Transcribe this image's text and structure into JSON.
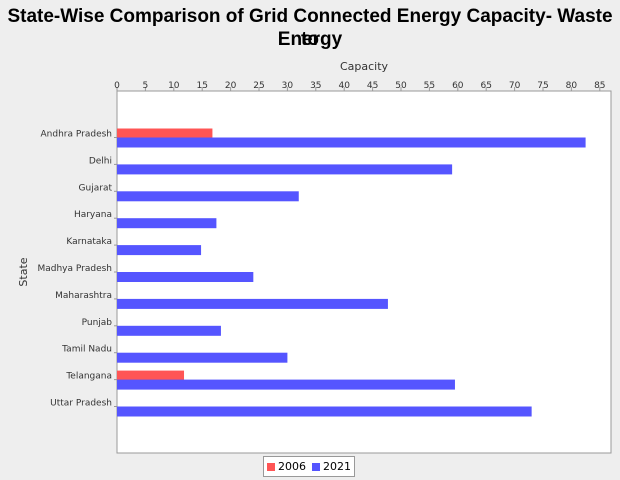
{
  "chart_data": {
    "type": "bar",
    "orientation": "horizontal",
    "title_line1": "State-Wise Comparison of Grid Connected Energy Capacity- Waste to",
    "title_line2": "Energy",
    "xlabel": "Capacity",
    "ylabel": "State",
    "xlim": [
      0,
      87
    ],
    "xticks": [
      0,
      5,
      10,
      15,
      20,
      25,
      30,
      35,
      40,
      45,
      50,
      55,
      60,
      65,
      70,
      75,
      80,
      85
    ],
    "grid": false,
    "legend_position": "bottom",
    "categories": [
      "Andhra Pradesh",
      "Delhi",
      "Gujarat",
      "Haryana",
      "Karnataka",
      "Madhya Pradesh",
      "Maharashtra",
      "Punjab",
      "Tamil Nadu",
      "Telangana",
      "Uttar Pradesh"
    ],
    "series": [
      {
        "name": "2006",
        "color": "#ff5555",
        "values": [
          16.8,
          null,
          null,
          null,
          null,
          null,
          null,
          null,
          null,
          11.8,
          null
        ]
      },
      {
        "name": "2021",
        "color": "#5555ff",
        "values": [
          82.5,
          59.0,
          32.0,
          17.5,
          14.8,
          24.0,
          47.7,
          18.3,
          30.0,
          59.5,
          73.0
        ]
      }
    ]
  }
}
